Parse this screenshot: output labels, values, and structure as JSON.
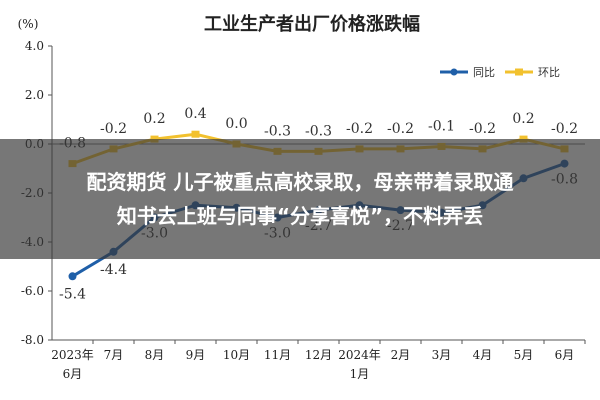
{
  "chart_data": {
    "type": "line",
    "title": "工业生产者出厂价格涨跌幅",
    "ylabel": "(%)",
    "ylim": [
      -8.0,
      4.0
    ],
    "yticks": [
      "4.0",
      "2.0",
      "0.0",
      "-2.0",
      "-4.0",
      "-6.0",
      "-8.0"
    ],
    "categories": [
      [
        "2023年",
        "6月"
      ],
      [
        "7月"
      ],
      [
        "8月"
      ],
      [
        "9月"
      ],
      [
        "10月"
      ],
      [
        "11月"
      ],
      [
        "12月"
      ],
      [
        "2024年",
        "1月"
      ],
      [
        "2月"
      ],
      [
        "3月"
      ],
      [
        "4月"
      ],
      [
        "5月"
      ],
      [
        "6月"
      ]
    ],
    "legend": {
      "position": "top-right"
    },
    "grid": false,
    "series": [
      {
        "name": "同比",
        "color": "#1f5fa8",
        "values": [
          -5.4,
          -4.4,
          -3.0,
          -2.5,
          -2.6,
          -3.0,
          -2.7,
          -2.5,
          -2.7,
          -2.8,
          -2.5,
          -1.4,
          -0.8
        ],
        "labels": [
          "-5.4",
          "-4.4",
          "-3.0",
          "",
          "",
          "-3.0",
          "-2.7",
          "",
          "-2.7",
          "",
          "",
          "",
          "-0.8"
        ]
      },
      {
        "name": "环比",
        "color": "#f2c12e",
        "values": [
          -0.8,
          -0.2,
          0.2,
          0.4,
          0.0,
          -0.3,
          -0.3,
          -0.2,
          -0.2,
          -0.1,
          -0.2,
          0.2,
          -0.2
        ],
        "labels": [
          "-0.8",
          "-0.2",
          "0.2",
          "0.4",
          "0.0",
          "-0.3",
          "-0.3",
          "-0.2",
          "-0.2",
          "-0.1",
          "-0.2",
          "0.2",
          "-0.2"
        ]
      }
    ]
  },
  "headline": {
    "line1": "配资期货 儿子被重点高校录取，母亲带着录取通",
    "line2": "知书去上班与同事“分享喜悦”，不料弄丢"
  }
}
